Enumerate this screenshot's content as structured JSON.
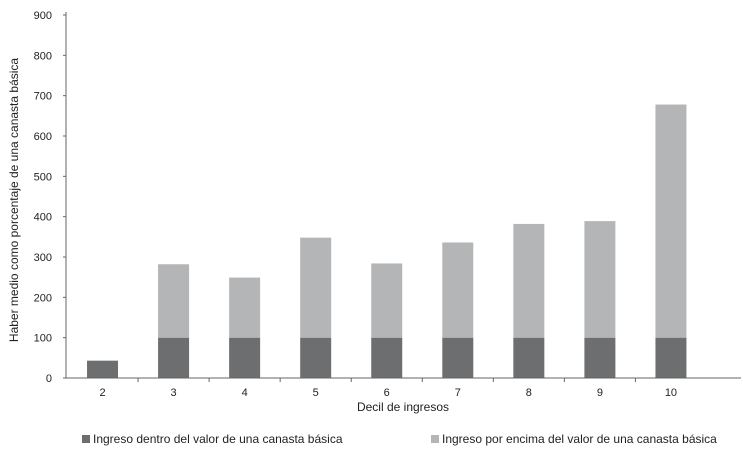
{
  "chart_data": {
    "type": "bar",
    "stacked": true,
    "title": "",
    "xlabel": "Decil de ingresos",
    "ylabel": "Haber medio como porcentaje de una canasta básica",
    "ylim": [
      0,
      900
    ],
    "yticks": [
      0,
      100,
      200,
      300,
      400,
      500,
      600,
      700,
      800,
      900
    ],
    "grid": false,
    "legend_position": "bottom",
    "categories": [
      "2",
      "3",
      "4",
      "5",
      "6",
      "7",
      "8",
      "9",
      "10"
    ],
    "series": [
      {
        "name": "Ingreso dentro del valor de una canasta básica",
        "color": "#6d6e70",
        "values": [
          43,
          100,
          100,
          100,
          100,
          100,
          100,
          100,
          100
        ]
      },
      {
        "name": "Ingreso por encima del valor de una canasta básica",
        "color": "#b4b5b7",
        "values": [
          0,
          182,
          149,
          248,
          184,
          236,
          282,
          289,
          578
        ]
      }
    ]
  }
}
